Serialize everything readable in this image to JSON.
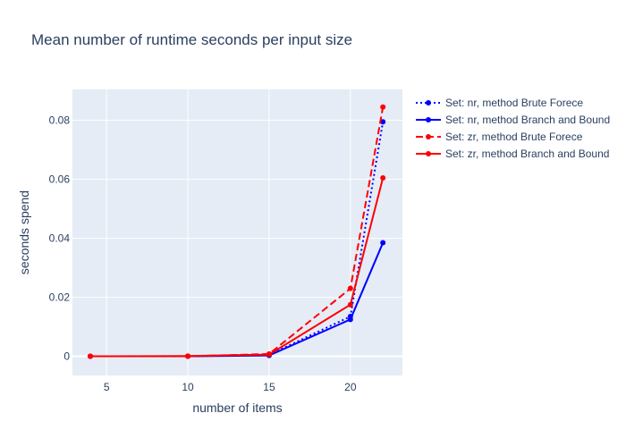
{
  "chart_data": {
    "type": "line",
    "title": "Mean number of runtime seconds per input size",
    "xlabel": "number of items",
    "ylabel": "seconds spend",
    "xlim": [
      2.9,
      23.2
    ],
    "ylim": [
      -0.0065,
      0.0905
    ],
    "xticks": [
      5,
      10,
      15,
      20
    ],
    "xtick_labels": [
      "5",
      "10",
      "15",
      "20"
    ],
    "yticks": [
      0,
      0.02,
      0.04,
      0.06,
      0.08
    ],
    "ytick_labels": [
      "0",
      "0.02",
      "0.04",
      "0.06",
      "0.08"
    ],
    "grid": true,
    "legend_position": "top-right, outside plot",
    "x": [
      4,
      10,
      15,
      20,
      22
    ],
    "series": [
      {
        "name": "Set: nr, method Brute Forece",
        "values": [
          0.0,
          0.0,
          0.0005,
          0.0135,
          0.0795
        ],
        "color": "#0000ff",
        "dash": "dot"
      },
      {
        "name": "Set: nr, method Branch and Bound",
        "values": [
          0.0,
          0.0,
          0.0003,
          0.0125,
          0.0385
        ],
        "color": "#0000ff",
        "dash": "solid"
      },
      {
        "name": "Set: zr, method Brute Forece",
        "values": [
          0.0,
          0.0,
          0.0008,
          0.023,
          0.0845
        ],
        "color": "#ff0000",
        "dash": "dash"
      },
      {
        "name": "Set: zr, method Branch and Bound",
        "values": [
          0.0,
          0.0001,
          0.0006,
          0.0175,
          0.0605
        ],
        "color": "#ff0000",
        "dash": "solid"
      }
    ]
  },
  "style": {
    "plot_background": "#e5ecf6",
    "grid_color": "#ffffff",
    "text_color": "#2a3f5f"
  }
}
